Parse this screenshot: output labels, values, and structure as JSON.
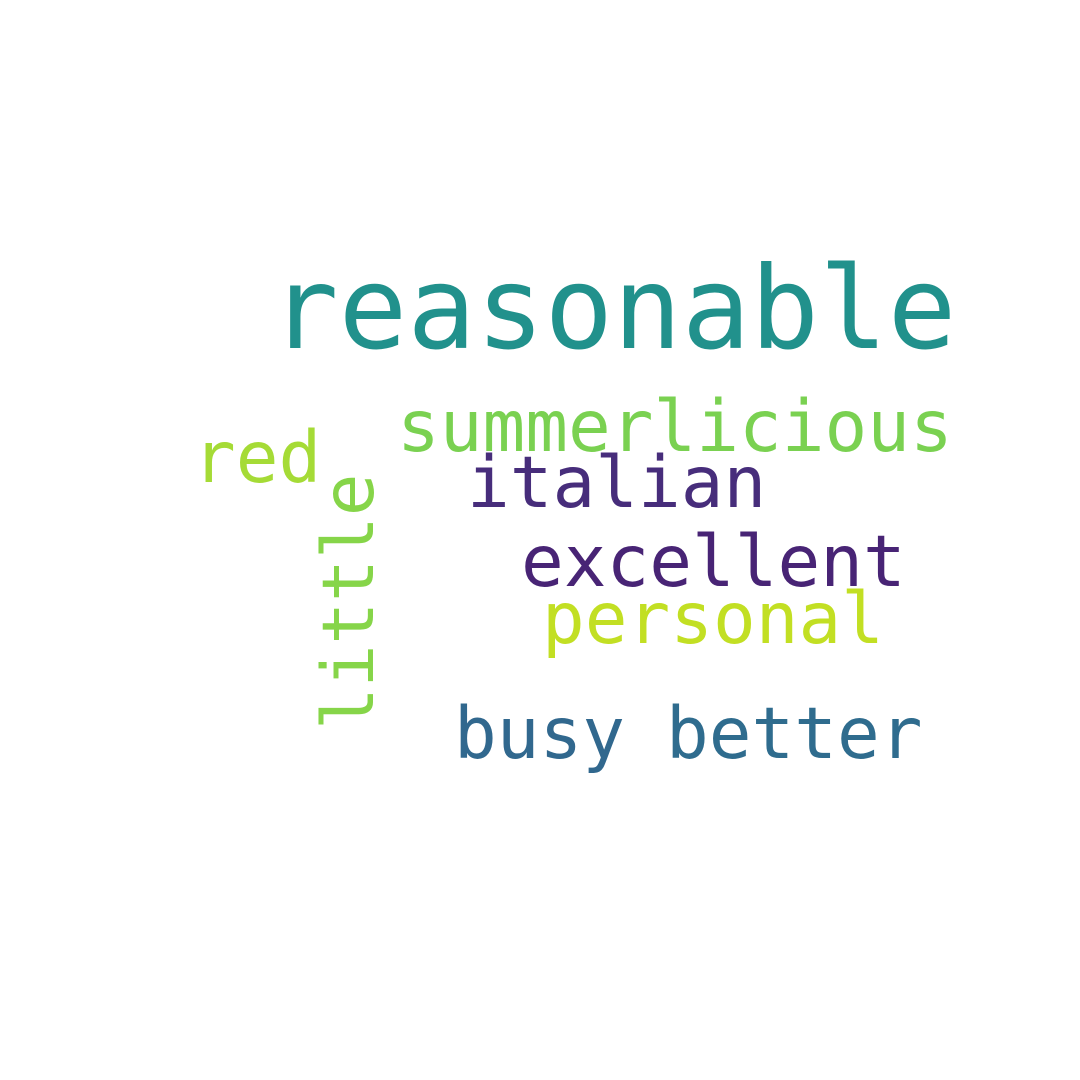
{
  "words": [
    {
      "text": "reasonable",
      "color": "#21918c"
    },
    {
      "text": "summerlicious",
      "color": "#7ad151"
    },
    {
      "text": "red",
      "color": "#a5db36"
    },
    {
      "text": "italian",
      "color": "#472d7b"
    },
    {
      "text": "excellent",
      "color": "#482475"
    },
    {
      "text": "personal",
      "color": "#c2df23"
    },
    {
      "text": "busy",
      "color": "#31688e"
    },
    {
      "text": "better",
      "color": "#2f6c8e"
    },
    {
      "text": "little",
      "color": "#86d549"
    }
  ]
}
